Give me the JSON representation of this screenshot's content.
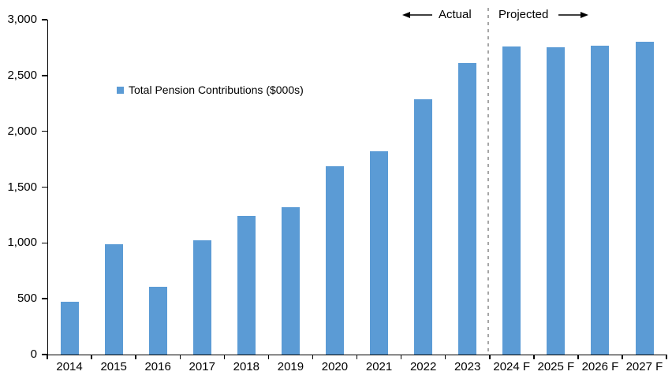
{
  "chart_data": {
    "type": "bar",
    "title": "",
    "legend_label": "Total Pension Contributions ($000s)",
    "legend_position": "inside-top-left",
    "categories": [
      "2014",
      "2015",
      "2016",
      "2017",
      "2018",
      "2019",
      "2020",
      "2021",
      "2022",
      "2023",
      "2024 F",
      "2025 F",
      "2026 F",
      "2027 F"
    ],
    "values": [
      470,
      990,
      610,
      1020,
      1240,
      1320,
      1690,
      1820,
      2290,
      2610,
      2760,
      2750,
      2770,
      2800
    ],
    "xlabel": "",
    "ylabel": "",
    "ylim": [
      0,
      3000
    ],
    "ytick_step": 500,
    "ytick_labels": [
      "0",
      "500",
      "1,000",
      "1,500",
      "2,000",
      "2,500",
      "3,000"
    ],
    "grid": false,
    "annotations": {
      "actual_label": "Actual",
      "projected_label": "Projected",
      "separator_after_category": "2023"
    },
    "colors": {
      "bar": "#5b9bd5",
      "separator": "#a6a6a6",
      "axis": "#000000",
      "text": "#000000"
    }
  }
}
